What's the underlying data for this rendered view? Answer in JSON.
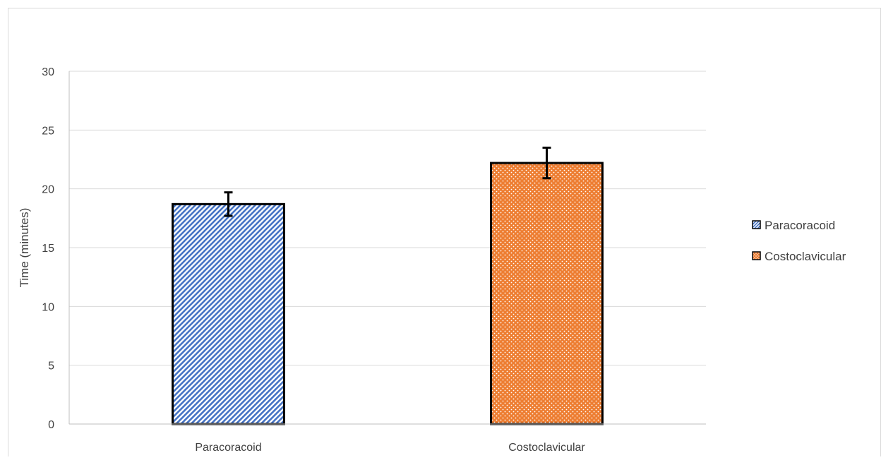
{
  "chart_data": {
    "type": "bar",
    "title": "",
    "xlabel": "",
    "ylabel": "Time (minutes)",
    "ylim": [
      0,
      30
    ],
    "yticks": [
      0,
      5,
      10,
      15,
      20,
      25,
      30
    ],
    "categories": [
      "Paracoracoid",
      "Costoclavicular"
    ],
    "values": [
      18.7,
      22.2
    ],
    "error": [
      1.0,
      1.3
    ],
    "grid": true,
    "legend": {
      "position": "right",
      "entries": [
        "Paracoracoid",
        "Costoclavicular"
      ]
    },
    "colors": {
      "Paracoracoid": "#4472c4",
      "Costoclavicular": "#ed7d31",
      "outline": "#000000",
      "gridline": "#d9d9d9",
      "axis": "#bfbfbf"
    },
    "patterns": {
      "Paracoracoid": "diagonal-stripes",
      "Costoclavicular": "dots"
    }
  }
}
